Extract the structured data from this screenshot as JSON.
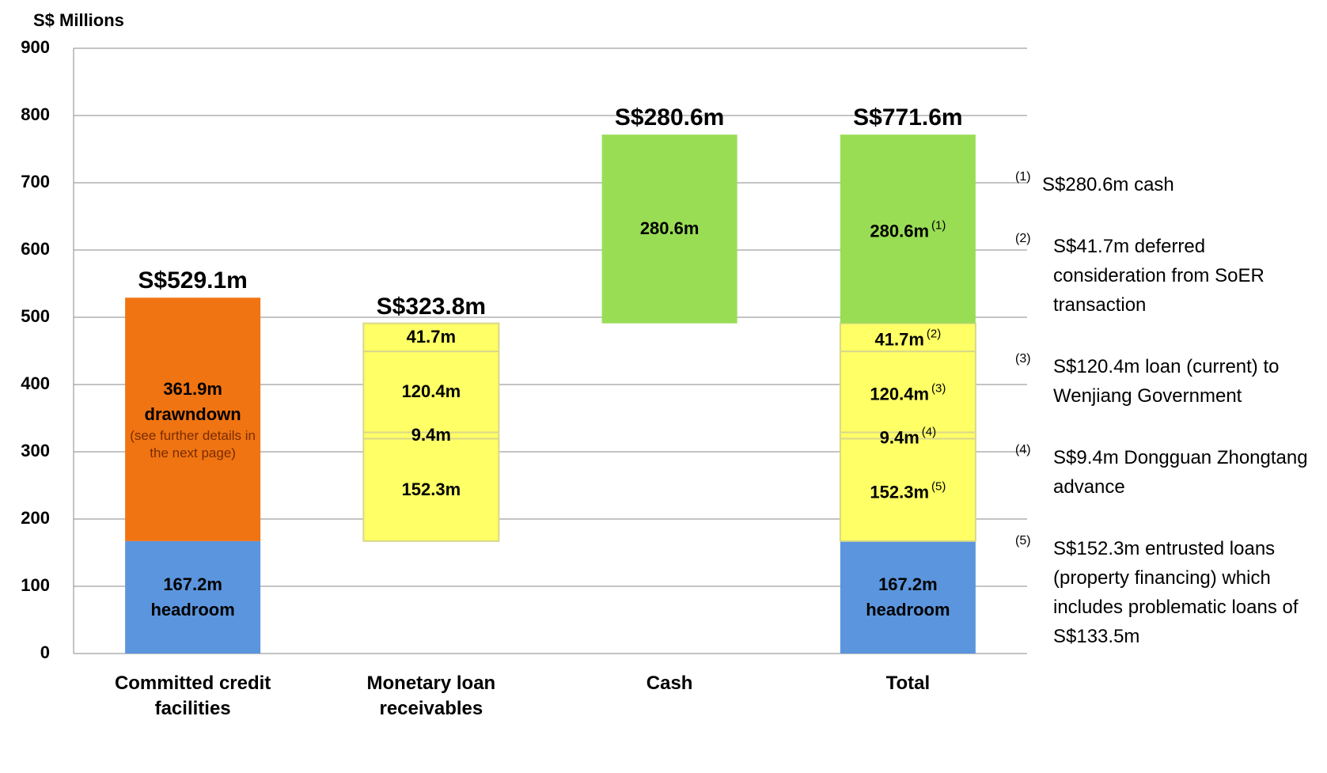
{
  "chart_data": {
    "type": "stacked_bar",
    "y_label": "S$ Millions",
    "categories": [
      "Committed credit facilities",
      "Monetary loan receivables",
      "Cash",
      "Total"
    ],
    "ylim": [
      0,
      900
    ],
    "yticks": [
      0,
      100,
      200,
      300,
      400,
      500,
      600,
      700,
      800,
      900
    ],
    "grid": true,
    "series": [
      {
        "color": "#5b95dd",
        "values": [
          167.2,
          null,
          null,
          167.2
        ],
        "value_labels": [
          "167.2m",
          null,
          null,
          "167.2m"
        ],
        "note": "headroom"
      },
      {
        "color": "#f07412",
        "values": [
          361.9,
          null,
          null,
          null
        ],
        "value_labels": [
          "361.9m",
          null,
          null,
          null
        ],
        "note": "drawndown",
        "subnote": "(see further details in the next page)"
      },
      {
        "color": "#ffff66",
        "values": [
          null,
          152.3,
          null,
          152.3
        ],
        "value_labels": [
          null,
          "152.3m",
          null,
          "152.3m"
        ],
        "footnote": "(5)"
      },
      {
        "color": "#ffff66",
        "values": [
          null,
          9.4,
          null,
          9.4
        ],
        "value_labels": [
          null,
          "9.4m",
          null,
          "9.4m"
        ],
        "footnote": "(4)"
      },
      {
        "color": "#ffff66",
        "values": [
          null,
          120.4,
          null,
          120.4
        ],
        "value_labels": [
          null,
          "120.4m",
          null,
          "120.4m"
        ],
        "footnote": "(3)"
      },
      {
        "color": "#ffff66",
        "values": [
          null,
          41.7,
          null,
          41.7
        ],
        "value_labels": [
          null,
          "41.7m",
          null,
          "41.7m"
        ],
        "footnote": "(2)"
      },
      {
        "color": "#99dd55",
        "values": [
          null,
          null,
          280.6,
          280.6
        ],
        "value_labels": [
          null,
          null,
          "280.6m",
          "280.6m"
        ],
        "footnote": "(1)"
      }
    ],
    "totals": [
      529.1,
      323.8,
      280.6,
      771.6
    ],
    "total_labels": [
      "S$529.1m",
      "S$323.8m",
      "S$280.6m",
      "S$771.6m"
    ],
    "footnotes": [
      {
        "marker": "(1)",
        "text": "S$280.6m cash"
      },
      {
        "marker": "(2)",
        "text": "S$41.7m deferred consideration from SoER transaction"
      },
      {
        "marker": "(3)",
        "text": "S$120.4m loan (current) to Wenjiang Government"
      },
      {
        "marker": "(4)",
        "text": "S$9.4m Dongguan Zhongtang advance"
      },
      {
        "marker": "(5)",
        "text": "S$152.3m entrusted loans (property financing) which includes problematic loans of S$133.5m"
      }
    ]
  }
}
